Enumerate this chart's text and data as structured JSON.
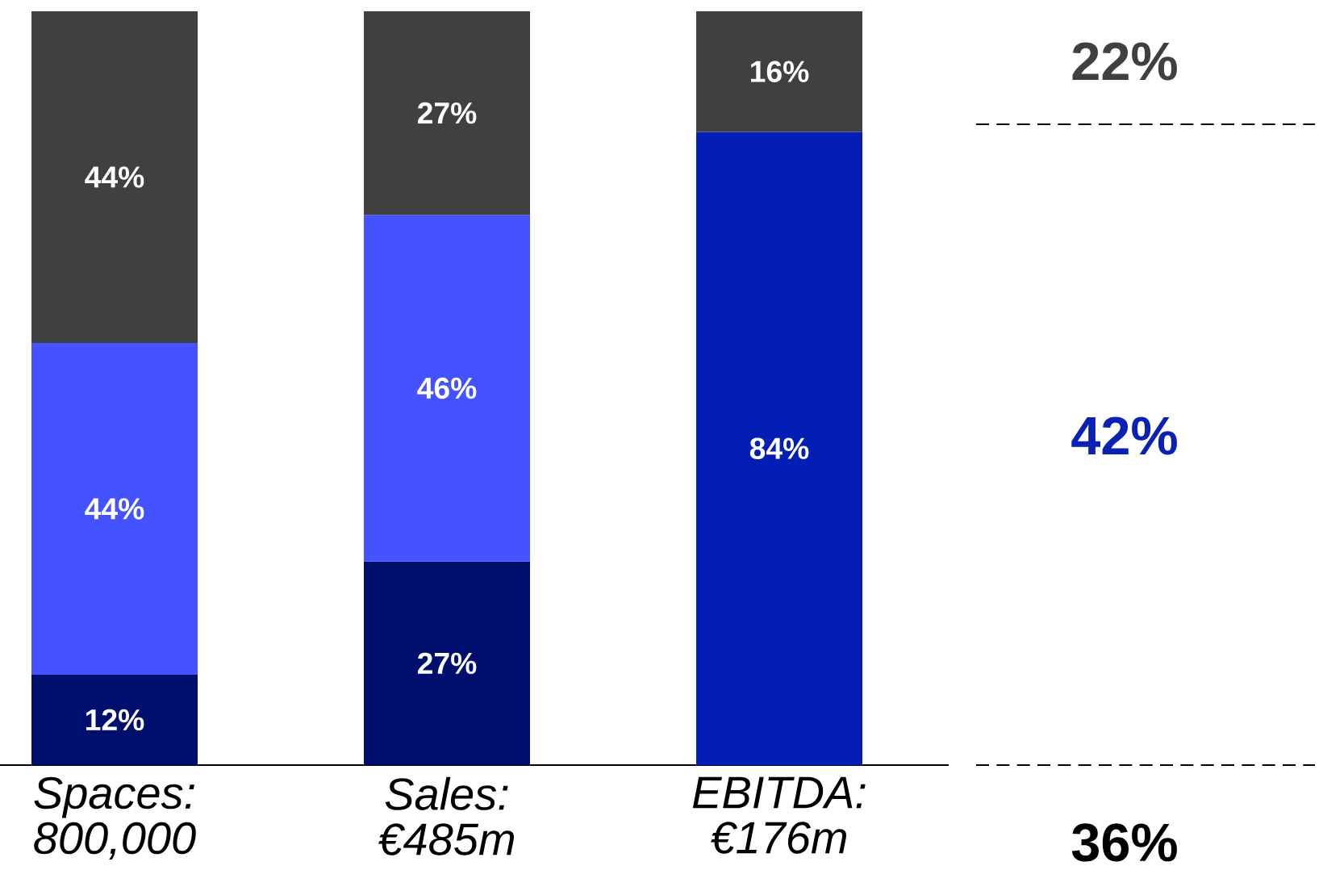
{
  "chart_data": {
    "type": "bar",
    "stacked": true,
    "categories": [
      "Spaces: 800,000",
      "Sales: €485m",
      "EBITDA: €176m"
    ],
    "ylim": [
      0,
      100
    ],
    "tick_labels": "x",
    "series": [
      {
        "color": "#000e6e",
        "values": [
          12,
          27,
          null
        ],
        "value_labels": [
          "12%",
          "27%",
          null
        ]
      },
      {
        "colors": [
          "#4452ff",
          "#4452ff",
          "#031eb5"
        ],
        "values": [
          44,
          46,
          84
        ],
        "value_labels": [
          "44%",
          "46%",
          "84%"
        ]
      },
      {
        "color": "#404040",
        "values": [
          44,
          27,
          16
        ],
        "value_labels": [
          "44%",
          "27%",
          "16%"
        ]
      }
    ],
    "annotations": [
      "22%",
      "42%",
      "36%"
    ]
  }
}
